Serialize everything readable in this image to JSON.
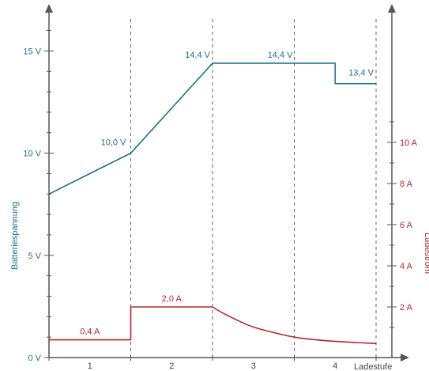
{
  "chart_data": {
    "type": "line",
    "xlabel": "Ladestufe",
    "ylabel_left": "Batteriespannung",
    "ylabel_right": "Ladestrom",
    "stages": [
      "1",
      "2",
      "3",
      "4"
    ],
    "x_range": [
      0,
      4
    ],
    "y_left": {
      "ticks": [
        0,
        5,
        10,
        15
      ],
      "tick_labels": [
        "0 V",
        "5 V",
        "10 V",
        "15 V"
      ],
      "range": [
        0,
        16
      ]
    },
    "y_right": {
      "ticks": [
        2,
        4,
        6,
        8,
        10
      ],
      "tick_labels": [
        "2 A",
        "4 A",
        "6 A",
        "8 A",
        "10 A"
      ],
      "range": [
        0,
        16
      ]
    },
    "grid": "stage boundaries dashed",
    "colors": {
      "voltage": "#1f6f8b",
      "current": "#b3262d",
      "axis": "#555555"
    },
    "series": [
      {
        "id": "voltage",
        "axis": "left",
        "x": [
          0,
          1,
          2,
          2.5,
          3.5,
          3.5,
          4
        ],
        "y": [
          8.0,
          10.0,
          14.4,
          14.4,
          14.4,
          13.4,
          13.4
        ]
      },
      {
        "id": "current",
        "axis": "right",
        "x": [
          0,
          1,
          1,
          2,
          2.1,
          2.3,
          2.5,
          2.8,
          3.0,
          3.3,
          3.6,
          4.0
        ],
        "y": [
          0.4,
          0.4,
          2.0,
          2.0,
          1.75,
          1.35,
          1.0,
          0.7,
          0.52,
          0.38,
          0.3,
          0.22
        ]
      }
    ],
    "annotations": [
      {
        "series": "voltage",
        "text": "10,0 V",
        "x": 1,
        "y": 10.0
      },
      {
        "series": "voltage",
        "text": "14,4 V",
        "x": 2,
        "y": 14.4
      },
      {
        "series": "voltage",
        "text": "14,4 V",
        "x": 3,
        "y": 14.4
      },
      {
        "series": "voltage",
        "text": "13,4 V",
        "x": 4,
        "y": 13.4
      },
      {
        "series": "current",
        "text": "0,4 A",
        "x": 0.5,
        "y": 0.4
      },
      {
        "series": "current",
        "text": "2,0 A",
        "x": 1.5,
        "y": 2.0
      }
    ]
  }
}
